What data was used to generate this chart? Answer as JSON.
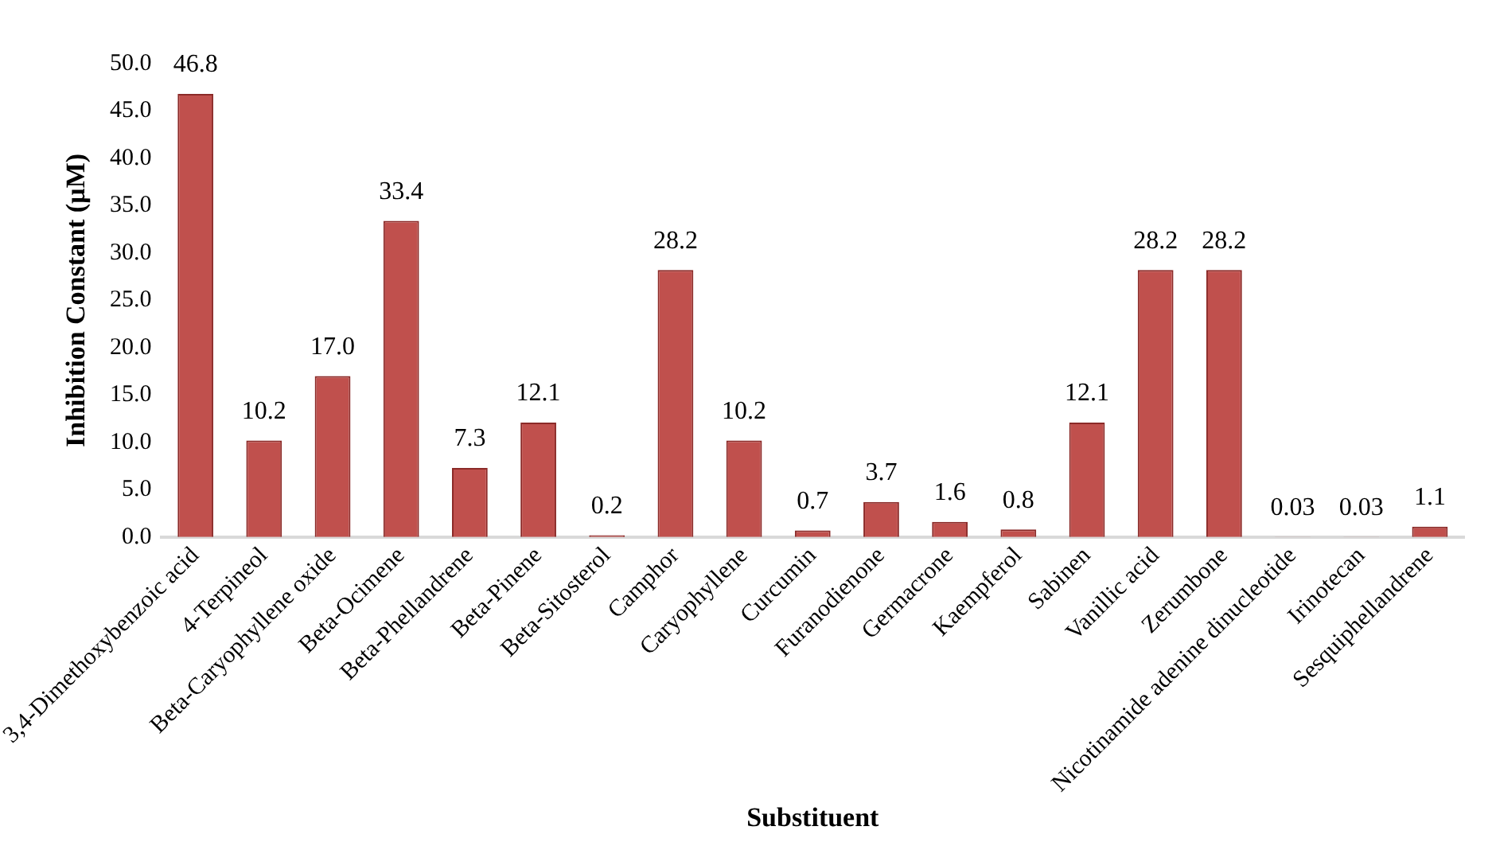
{
  "chart_data": {
    "type": "bar",
    "xlabel": "Substituent",
    "ylabel": "Inhibition Constant (µM)",
    "categories": [
      "3,4-Dimethoxybenzoic acid",
      "4-Terpineol",
      "Beta-Caryophyllene oxide",
      "Beta-Ocimene",
      "Beta-Phellandrene",
      "Beta-Pinene",
      "Beta-Sitosterol",
      "Camphor",
      "Caryophyllene",
      "Curcumin",
      "Furanodienone",
      "Germacrone",
      "Kaempferol",
      "Sabinen",
      "Vanillic acid",
      "Zerumbone",
      "Nicotinamide adenine dinucleotide",
      "Irinotecan",
      "Sesquiphellandrene"
    ],
    "values": [
      46.8,
      10.2,
      17.0,
      33.4,
      7.3,
      12.1,
      0.2,
      28.2,
      10.2,
      0.7,
      3.7,
      1.6,
      0.8,
      12.1,
      28.2,
      28.2,
      0.03,
      0.03,
      1.1
    ],
    "value_labels": [
      "46.8",
      "10.2",
      "17.0",
      "33.4",
      "7.3",
      "12.1",
      "0.2",
      "28.2",
      "10.2",
      "0.7",
      "3.7",
      "1.6",
      "0.8",
      "12.1",
      "28.2",
      "28.2",
      "0.03",
      "0.03",
      "1.1"
    ],
    "color": "#c0504d",
    "ylim": [
      0,
      50
    ],
    "yticks": [
      {
        "value": 0,
        "label": "0.0"
      },
      {
        "value": 5,
        "label": "5.0"
      },
      {
        "value": 10,
        "label": "10.0"
      },
      {
        "value": 15,
        "label": "15.0"
      },
      {
        "value": 20,
        "label": "20.0"
      },
      {
        "value": 25,
        "label": "25.0"
      },
      {
        "value": 30,
        "label": "30.0"
      },
      {
        "value": 35,
        "label": "35.0"
      },
      {
        "value": 40,
        "label": "40.0"
      },
      {
        "value": 45,
        "label": "45.0"
      },
      {
        "value": 50,
        "label": "50.0"
      }
    ],
    "grid": false,
    "legend": false
  }
}
